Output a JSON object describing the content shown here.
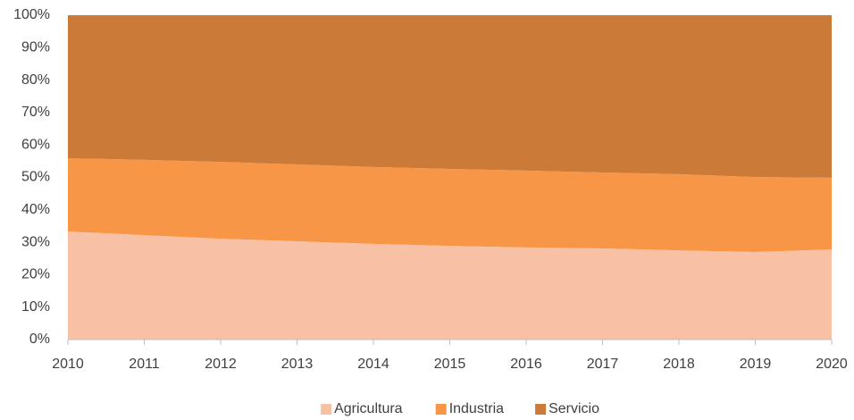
{
  "chart_data": {
    "type": "stacked_area",
    "x": [
      2010,
      2011,
      2012,
      2013,
      2014,
      2015,
      2016,
      2017,
      2018,
      2019,
      2020
    ],
    "series": [
      {
        "name": "Agricultura",
        "color": "#f8c1a6",
        "values": [
          33.3,
          32.2,
          31.1,
          30.3,
          29.5,
          28.9,
          28.4,
          28.1,
          27.5,
          27.0,
          27.8
        ]
      },
      {
        "name": "Industria",
        "color": "#f79646",
        "values": [
          22.6,
          23.2,
          23.7,
          23.7,
          23.7,
          23.7,
          23.7,
          23.4,
          23.5,
          23.1,
          22.1
        ]
      },
      {
        "name": "Servicio",
        "color": "#cc7a38",
        "values": [
          44.1,
          44.6,
          45.2,
          46.0,
          46.8,
          47.4,
          47.9,
          48.5,
          49.0,
          49.9,
          50.1
        ]
      }
    ],
    "xlim": [
      2010,
      2020
    ],
    "xticks": [
      2010,
      2011,
      2012,
      2013,
      2014,
      2015,
      2016,
      2017,
      2018,
      2019,
      2020
    ],
    "ylim": [
      0,
      100
    ],
    "yticks": [
      {
        "value": 0,
        "label": "0%"
      },
      {
        "value": 10,
        "label": "10%"
      },
      {
        "value": 20,
        "label": "20%"
      },
      {
        "value": 30,
        "label": "30%"
      },
      {
        "value": 40,
        "label": "40%"
      },
      {
        "value": 50,
        "label": "50%"
      },
      {
        "value": 60,
        "label": "60%"
      },
      {
        "value": 70,
        "label": "70%"
      },
      {
        "value": 80,
        "label": "80%"
      },
      {
        "value": 90,
        "label": "90%"
      },
      {
        "value": 100,
        "label": "100%"
      }
    ],
    "grid": false,
    "legend": "bottom"
  }
}
